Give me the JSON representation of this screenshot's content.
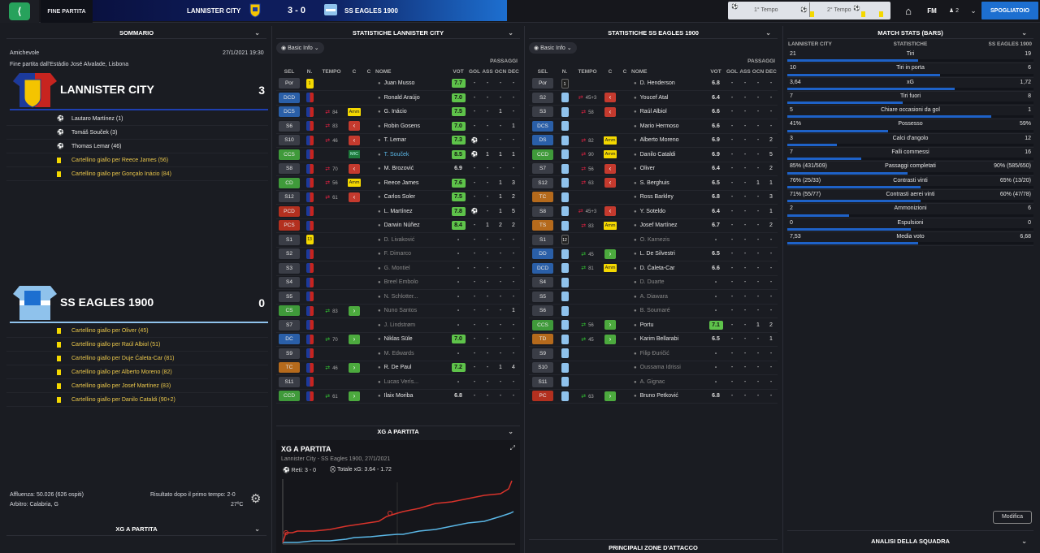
{
  "topbar": {
    "state": "FINE PARTITA",
    "home": "LANNISTER CITY",
    "score": "3 - 0",
    "away": "SS EAGLES 1900",
    "t1": "1° Tempo",
    "t2": "2° Tempo",
    "fm": "FM",
    "users": "2",
    "spogliatoio": "SPOGLIATOIO"
  },
  "summary": {
    "title": "SOMMARIO",
    "comp": "Amichevole",
    "date": "27/1/2021 19:30",
    "venue": "Fine partita dall'Estádio José Alvalade, Lisbona",
    "home": {
      "name": "LANNISTER CITY",
      "score": "3",
      "events": [
        "Lautaro Martínez (1)",
        "Tomáš Souček (3)",
        "Thomas Lemar (46)",
        "Cartellino giallo per Reece James (56)",
        "Cartellino giallo per Gonçalo Inácio (84)"
      ]
    },
    "away": {
      "name": "SS EAGLES 1900",
      "score": "0",
      "events": [
        "Cartellino giallo per Oliver (45)",
        "Cartellino giallo per Raúl Albiol (51)",
        "Cartellino giallo per Duje Ćaleta-Car (81)",
        "Cartellino giallo per Alberto Moreno (82)",
        "Cartellino giallo per Josef Martínez (83)",
        "Cartellino giallo per Danilo Cataldi (90+2)"
      ]
    },
    "affluenza": "Affluenza: 50.026 (626 ospiti)",
    "arbitro": "Arbitro: Calabria, G",
    "risultato": "Risultato dopo il primo tempo: 2-0",
    "temp": "27ºC",
    "xg_title": "XG A PARTITA"
  },
  "home_stats": {
    "title": "STATISTICHE LANNISTER CITY",
    "basic": "Basic Info",
    "headers": [
      "SEL",
      "N.",
      "TEMPO",
      "C",
      "C",
      "NOME",
      "VOT",
      "GOL",
      "ASS",
      "OCN",
      "DEC"
    ],
    "passaggi": "PASSAGGI",
    "rows": [
      [
        "Por",
        "1",
        "",
        "",
        "",
        "Juan Musso",
        "7.7",
        "-",
        "-",
        "-",
        "-"
      ],
      [
        "DCD",
        "",
        "",
        "",
        "",
        "Ronald Araújo",
        "7.0",
        "-",
        "-",
        "-",
        "-"
      ],
      [
        "DCS",
        "",
        "84",
        "Amm",
        "",
        "G. Inácio",
        "7.5",
        "-",
        "-",
        "1",
        "-"
      ],
      [
        "S6",
        "",
        "83",
        "",
        "",
        "Robin Gosens",
        "7.0",
        "-",
        "-",
        "-",
        "1"
      ],
      [
        "S10",
        "",
        "46",
        "",
        "",
        "T. Lemar",
        "7.3",
        "⚽",
        "-",
        "-",
        "-"
      ],
      [
        "CCS",
        "",
        "",
        "MIC",
        "",
        "T. Souček",
        "8.5",
        "⚽",
        "1",
        "1",
        "1"
      ],
      [
        "S8",
        "",
        "70",
        "",
        "",
        "M. Brozović",
        "6.9",
        "-",
        "-",
        "-",
        "-"
      ],
      [
        "CD",
        "",
        "56",
        "Amm",
        "",
        "Reece James",
        "7.6",
        "-",
        "-",
        "1",
        "3"
      ],
      [
        "S12",
        "",
        "61",
        "",
        "",
        "Carlos Soler",
        "7.5",
        "-",
        "-",
        "1",
        "2"
      ],
      [
        "PCD",
        "",
        "",
        "",
        "",
        "L. Martínez",
        "7.8",
        "⚽",
        "-",
        "1",
        "5"
      ],
      [
        "PCS",
        "",
        "",
        "",
        "",
        "Darwin Núñez",
        "8.4",
        "-",
        "1",
        "2",
        "2"
      ],
      [
        "S1",
        "13",
        "",
        "",
        "",
        "D. Livaković",
        "-",
        "-",
        "-",
        "-",
        "-"
      ],
      [
        "S2",
        "",
        "",
        "",
        "",
        "F. Dimarco",
        "-",
        "-",
        "-",
        "-",
        "-"
      ],
      [
        "S3",
        "",
        "",
        "",
        "",
        "G. Montiel",
        "-",
        "-",
        "-",
        "-",
        "-"
      ],
      [
        "S4",
        "",
        "",
        "",
        "",
        "Breel Embolo",
        "-",
        "-",
        "-",
        "-",
        "-"
      ],
      [
        "S5",
        "",
        "",
        "",
        "",
        "N. Schlotter...",
        "-",
        "-",
        "-",
        "-",
        "-"
      ],
      [
        "CS",
        "",
        "83",
        "",
        "",
        "Nuno Santos",
        "-",
        "-",
        "-",
        "-",
        "1"
      ],
      [
        "S7",
        "",
        "",
        "",
        "",
        "J. Lindstrøm",
        "-",
        "-",
        "-",
        "-",
        "-"
      ],
      [
        "DC",
        "",
        "70",
        "",
        "",
        "Niklas Süle",
        "7.0",
        "-",
        "-",
        "-",
        "-"
      ],
      [
        "S9",
        "",
        "",
        "",
        "",
        "M. Edwards",
        "-",
        "-",
        "-",
        "-",
        "-"
      ],
      [
        "TC",
        "",
        "46",
        "",
        "",
        "R. De Paul",
        "7.2",
        "-",
        "-",
        "1",
        "4"
      ],
      [
        "S11",
        "",
        "",
        "",
        "",
        "Lucas Verís...",
        "-",
        "-",
        "-",
        "-",
        "-"
      ],
      [
        "CCD",
        "",
        "61",
        "",
        "",
        "Ilaix Moriba",
        "6.8",
        "-",
        "-",
        "-",
        "-"
      ]
    ],
    "xg": {
      "title": "XG A PARTITA",
      "sub": "Lannister City - SS Eagles 1900, 27/1/2021",
      "reti": "Reti: 3 - 0",
      "totale": "Totale xG: 3.64 - 1.72"
    }
  },
  "away_stats": {
    "title": "STATISTICHE SS EAGLES 1900",
    "basic": "Basic Info",
    "passaggi": "PASSAGGI",
    "rows": [
      [
        "Por",
        "1",
        "",
        "",
        "",
        "D. Henderson",
        "6.8",
        "-",
        "-",
        "-",
        "-"
      ],
      [
        "S2",
        "",
        "45+3",
        "",
        "",
        "Youcef Atal",
        "6.4",
        "-",
        "-",
        "-",
        "-"
      ],
      [
        "S3",
        "",
        "58",
        "",
        "",
        "Raúl Albiol",
        "6.6",
        "-",
        "-",
        "-",
        "-"
      ],
      [
        "DCS",
        "",
        "",
        "",
        "",
        "Mario Hermoso",
        "6.6",
        "-",
        "-",
        "-",
        "-"
      ],
      [
        "DS",
        "",
        "82",
        "Amm",
        "",
        "Alberto Moreno",
        "6.9",
        "-",
        "-",
        "-",
        "2"
      ],
      [
        "CCD",
        "",
        "90",
        "Amm",
        "",
        "Danilo Cataldi",
        "6.9",
        "-",
        "-",
        "-",
        "5"
      ],
      [
        "S7",
        "",
        "56",
        "",
        "",
        "Oliver",
        "6.4",
        "-",
        "-",
        "-",
        "2"
      ],
      [
        "S12",
        "",
        "63",
        "",
        "",
        "S. Berghuis",
        "6.5",
        "-",
        "-",
        "1",
        "1"
      ],
      [
        "TC",
        "",
        "",
        "",
        "",
        "Ross Barkley",
        "6.8",
        "-",
        "-",
        "-",
        "3"
      ],
      [
        "S8",
        "",
        "45+3",
        "",
        "",
        "Y. Soteldo",
        "6.4",
        "-",
        "-",
        "-",
        "1"
      ],
      [
        "TS",
        "",
        "83",
        "Amm",
        "",
        "Josef Martínez",
        "6.7",
        "-",
        "-",
        "-",
        "2"
      ],
      [
        "S1",
        "12",
        "",
        "",
        "",
        "O. Karnezis",
        "-",
        "-",
        "-",
        "-",
        "-"
      ],
      [
        "DD",
        "",
        "45",
        "",
        "",
        "L. De Silvestri",
        "6.5",
        "-",
        "-",
        "-",
        "-"
      ],
      [
        "DCD",
        "",
        "81",
        "Amm",
        "",
        "D. Ćaleta-Car",
        "6.6",
        "-",
        "-",
        "-",
        "-"
      ],
      [
        "S4",
        "",
        "",
        "",
        "",
        "D. Duarte",
        "-",
        "-",
        "-",
        "-",
        "-"
      ],
      [
        "S5",
        "",
        "",
        "",
        "",
        "A. Diawara",
        "-",
        "-",
        "-",
        "-",
        "-"
      ],
      [
        "S6",
        "",
        "",
        "",
        "",
        "B. Soumaré",
        "-",
        "-",
        "-",
        "-",
        "-"
      ],
      [
        "CCS",
        "",
        "56",
        "",
        "",
        "Portu",
        "7.1",
        "-",
        "-",
        "1",
        "2"
      ],
      [
        "TD",
        "",
        "45",
        "",
        "",
        "Karim Bellarabi",
        "6.5",
        "-",
        "-",
        "-",
        "1"
      ],
      [
        "S9",
        "",
        "",
        "",
        "",
        "Filip Đuričić",
        "-",
        "-",
        "-",
        "-",
        "-"
      ],
      [
        "S10",
        "",
        "",
        "",
        "",
        "Oussama Idrissi",
        "-",
        "-",
        "-",
        "-",
        "-"
      ],
      [
        "S11",
        "",
        "",
        "",
        "",
        "A. Gignac",
        "-",
        "-",
        "-",
        "-",
        "-"
      ],
      [
        "PC",
        "",
        "63",
        "",
        "",
        "Bruno Petković",
        "6.8",
        "-",
        "-",
        "-",
        "-"
      ]
    ],
    "bottom": "PRINCIPALI ZONE D'ATTACCO"
  },
  "match_stats": {
    "title": "MATCH STATS (BARS)",
    "home": "LANNISTER CITY",
    "mid": "STATISTICHE",
    "away": "SS EAGLES 1900",
    "rows": [
      [
        "21",
        "Tiri",
        "19",
        0.53
      ],
      [
        "10",
        "Tiri in porta",
        "6",
        0.62
      ],
      [
        "3,64",
        "xG",
        "1,72",
        0.68
      ],
      [
        "7",
        "Tiri fuori",
        "8",
        0.47
      ],
      [
        "5",
        "Chiare occasioni da gol",
        "1",
        0.83
      ],
      [
        "41%",
        "Possesso",
        "59%",
        0.41
      ],
      [
        "3",
        "Calci d'angolo",
        "12",
        0.2
      ],
      [
        "7",
        "Falli commessi",
        "16",
        0.3
      ],
      [
        "85% (431/509)",
        "Passaggi completati",
        "90% (585/650)",
        0.49
      ],
      [
        "76% (25/33)",
        "Contrasti vinti",
        "65% (13/20)",
        0.54
      ],
      [
        "71% (55/77)",
        "Contrasti aerei vinti",
        "60% (47/78)",
        0.54
      ],
      [
        "2",
        "Ammonizioni",
        "6",
        0.25
      ],
      [
        "0",
        "Espulsioni",
        "0",
        0.5
      ],
      [
        "7,53",
        "Media voto",
        "6,68",
        0.53
      ]
    ],
    "modifica": "Modifica",
    "analisi": "ANALISI DELLA SQUADRA"
  }
}
